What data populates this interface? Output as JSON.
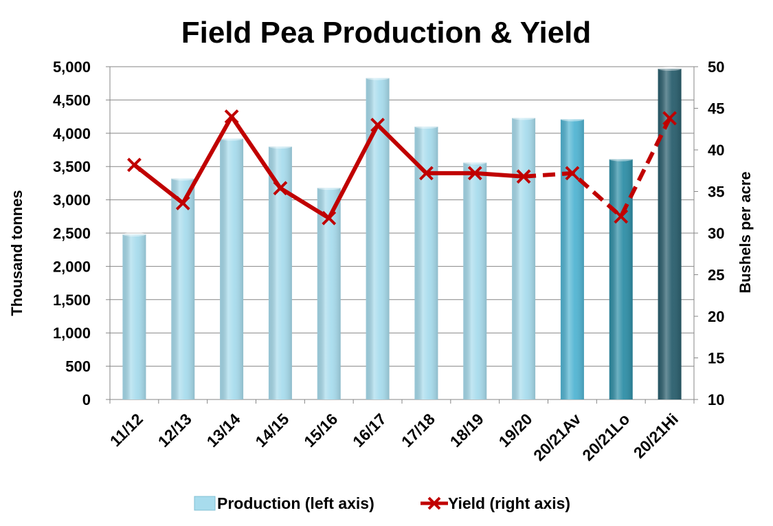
{
  "chart_data": {
    "type": "bar+line",
    "title": "Field Pea Production & Yield",
    "categories": [
      "11/12",
      "12/13",
      "13/14",
      "14/15",
      "15/16",
      "16/17",
      "17/18",
      "18/19",
      "19/20",
      "20/21Av",
      "20/21Lo",
      "20/21Hi"
    ],
    "series": [
      {
        "name": "Production (left axis)",
        "type": "bar",
        "axis": "left",
        "values": [
          2480,
          3320,
          3920,
          3800,
          3180,
          4830,
          4100,
          3560,
          4230,
          4210,
          3610,
          4970
        ],
        "colors": [
          "#a8dced",
          "#a8dced",
          "#a8dced",
          "#a8dced",
          "#a8dced",
          "#a8dced",
          "#a8dced",
          "#a8dced",
          "#a8dced",
          "#52b5d3",
          "#2f8fa7",
          "#2a5f6e"
        ]
      },
      {
        "name": "Yield (right axis)",
        "type": "line",
        "axis": "right",
        "values": [
          38.2,
          33.6,
          44.0,
          35.4,
          31.8,
          43.0,
          37.2,
          37.2,
          36.8,
          37.2,
          32.0,
          43.8
        ],
        "color": "#c00000",
        "dashed_from_index": 8
      }
    ],
    "ylabel_left": "Thousand tonnes",
    "ylabel_right": "Bushels per acre",
    "ylim_left": [
      0,
      5000
    ],
    "ylim_right": [
      10,
      50
    ],
    "yticks_left": [
      "0",
      "500",
      "1,000",
      "1,500",
      "2,000",
      "2,500",
      "3,000",
      "3,500",
      "4,000",
      "4,500",
      "5,000"
    ],
    "yticks_right": [
      "10",
      "15",
      "20",
      "25",
      "30",
      "35",
      "40",
      "45",
      "50"
    ],
    "grid": true,
    "legend": "bottom"
  }
}
